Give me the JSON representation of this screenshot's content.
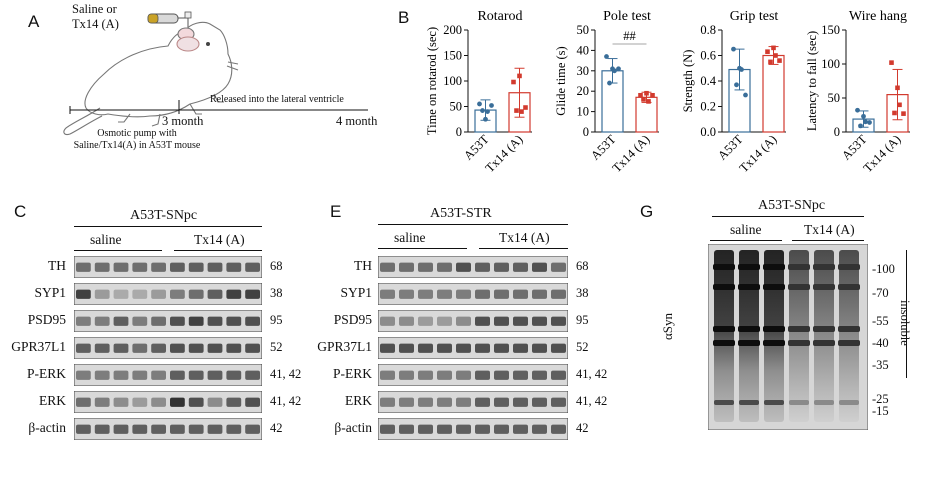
{
  "panel_a": {
    "label": "A",
    "treatment": [
      "Saline or",
      "Tx14 (A)"
    ],
    "timeline_3m": "3 month",
    "timeline_4m": "4 month",
    "released": "Released into the lateral ventricle",
    "pump_note": [
      "Osmotic pump with",
      "Saline/Tx14(A) in A53T mouse"
    ]
  },
  "panel_b": {
    "label": "B"
  },
  "chart_data": [
    {
      "type": "bar",
      "title": "Rotarod",
      "ylabel": "Time on rotarod (sec)",
      "categories": [
        "A53T",
        "Tx14 (A)"
      ],
      "values": [
        43,
        77
      ],
      "errors": [
        20,
        48
      ],
      "points": [
        [
          55,
          25,
          40,
          42,
          52
        ],
        [
          98,
          110,
          40,
          42,
          48
        ]
      ],
      "ylim": [
        0,
        200
      ],
      "yticks": [
        "0",
        "50",
        "100",
        "150",
        "200"
      ],
      "colors": [
        "#3a6e99",
        "#d23a2e"
      ],
      "annotation": ""
    },
    {
      "type": "bar",
      "title": "Pole test",
      "ylabel": "Glide time (s)",
      "categories": [
        "A53T",
        "Tx14 (A)"
      ],
      "values": [
        30,
        17
      ],
      "errors": [
        6,
        2.5
      ],
      "points": [
        [
          37,
          31,
          30,
          24,
          31
        ],
        [
          18,
          19,
          15,
          16,
          18
        ]
      ],
      "ylim": [
        0,
        50
      ],
      "yticks": [
        "0",
        "10",
        "20",
        "30",
        "40",
        "50"
      ],
      "colors": [
        "#3a6e99",
        "#d23a2e"
      ],
      "annotation": "##"
    },
    {
      "type": "bar",
      "title": "Grip test",
      "ylabel": "Strength (N)",
      "categories": [
        "A53T",
        "Tx14 (A)"
      ],
      "values": [
        0.49,
        0.6
      ],
      "errors": [
        0.16,
        0.07
      ],
      "points": [
        [
          0.65,
          0.5,
          0.49,
          0.37,
          0.29
        ],
        [
          0.63,
          0.66,
          0.6,
          0.55,
          0.56
        ]
      ],
      "ylim": [
        0,
        0.8
      ],
      "yticks": [
        "0.0",
        "0.2",
        "0.4",
        "0.6",
        "0.8"
      ],
      "colors": [
        "#3a6e99",
        "#d23a2e"
      ],
      "annotation": ""
    },
    {
      "type": "bar",
      "title": "Wire hang",
      "ylabel": "Latency to fall (sec)",
      "categories": [
        "A53T",
        "Tx14 (A)"
      ],
      "values": [
        19,
        55
      ],
      "errors": [
        12,
        37
      ],
      "points": [
        [
          32,
          23,
          15,
          9,
          14
        ],
        [
          102,
          65,
          40,
          28,
          27
        ]
      ],
      "ylim": [
        0,
        150
      ],
      "yticks": [
        "0",
        "50",
        "100",
        "150"
      ],
      "colors": [
        "#3a6e99",
        "#d23a2e"
      ],
      "annotation": ""
    }
  ],
  "panel_c": {
    "label": "C",
    "title": "A53T-SNpc",
    "groups": [
      "saline",
      "Tx14 (A)"
    ],
    "rows": [
      {
        "name": "TH",
        "kda": "68"
      },
      {
        "name": "SYP1",
        "kda": "38"
      },
      {
        "name": "PSD95",
        "kda": "95"
      },
      {
        "name": "GPR37L1",
        "kda": "52"
      },
      {
        "name": "P-ERK",
        "kda": "41, 42"
      },
      {
        "name": "ERK",
        "kda": "41, 42"
      },
      {
        "name": "β-actin",
        "kda": "42"
      }
    ]
  },
  "panel_e": {
    "label": "E",
    "title": "A53T-STR",
    "groups": [
      "saline",
      "Tx14 (A)"
    ],
    "rows": [
      {
        "name": "TH",
        "kda": "68"
      },
      {
        "name": "SYP1",
        "kda": "38"
      },
      {
        "name": "PSD95",
        "kda": "95"
      },
      {
        "name": "GPR37L1",
        "kda": "52"
      },
      {
        "name": "P-ERK",
        "kda": "41, 42"
      },
      {
        "name": "ERK",
        "kda": "41, 42"
      },
      {
        "name": "β-actin",
        "kda": "42"
      }
    ]
  },
  "panel_g": {
    "label": "G",
    "title": "A53T-SNpc",
    "groups": [
      "saline",
      "Tx14 (A)"
    ],
    "ylabel": "αSyn",
    "fraction": "insoluble",
    "markers": [
      "-100",
      "-70",
      "-55",
      "-40",
      "-35",
      "-25",
      "-15"
    ]
  }
}
